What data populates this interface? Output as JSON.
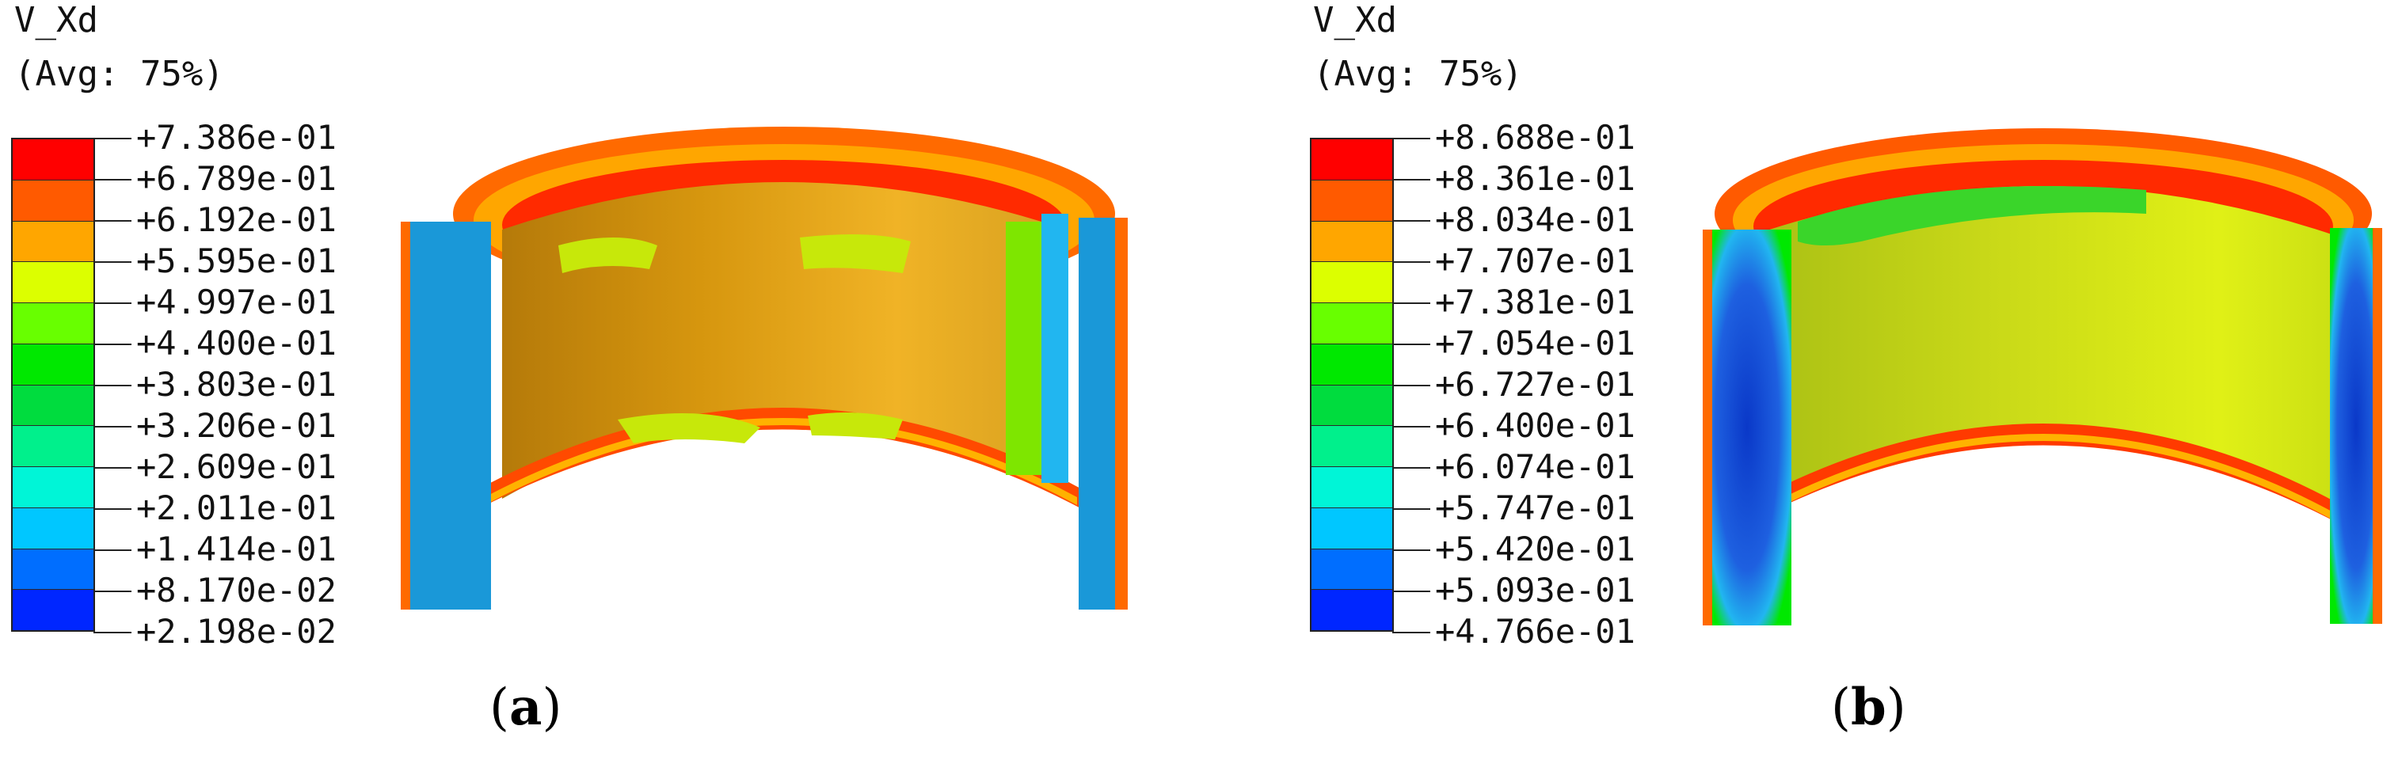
{
  "figures": [
    {
      "id": "a",
      "variable": "V_Xd",
      "averaging": "(Avg: 75%)",
      "caption_open": "(",
      "caption_letter": "a",
      "caption_close": ")",
      "legend": {
        "labels": [
          "+7.386e-01",
          "+6.789e-01",
          "+6.192e-01",
          "+5.595e-01",
          "+4.997e-01",
          "+4.400e-01",
          "+3.803e-01",
          "+3.206e-01",
          "+2.609e-01",
          "+2.011e-01",
          "+1.414e-01",
          "+8.170e-02",
          "+2.198e-02"
        ],
        "colors": [
          "#ff0000",
          "#ff5a00",
          "#ffa600",
          "#dcff00",
          "#68ff00",
          "#00e800",
          "#00dc3e",
          "#00f08c",
          "#00f5d7",
          "#00c7ff",
          "#006eff",
          "#0026ff"
        ]
      },
      "contour_colors": {
        "inner_wall": "#d6960e",
        "inner_wall_light": "#e8ad20",
        "rim": "#ff3c00",
        "rim_band": "#ffa600",
        "cut_face": "#1a98d8",
        "accent_green": "#7ee600",
        "accent_lime": "#c7e80a"
      }
    },
    {
      "id": "b",
      "variable": "V_Xd",
      "averaging": "(Avg: 75%)",
      "caption_open": "(",
      "caption_letter": "b",
      "caption_close": ")",
      "legend": {
        "labels": [
          "+8.688e-01",
          "+8.361e-01",
          "+8.034e-01",
          "+7.707e-01",
          "+7.381e-01",
          "+7.054e-01",
          "+6.727e-01",
          "+6.400e-01",
          "+6.074e-01",
          "+5.747e-01",
          "+5.420e-01",
          "+5.093e-01",
          "+4.766e-01"
        ],
        "colors": [
          "#ff0000",
          "#ff5a00",
          "#ffa600",
          "#dcff00",
          "#68ff00",
          "#00e800",
          "#00dc3e",
          "#00f08c",
          "#00f5d7",
          "#00c7ff",
          "#006eff",
          "#0026ff"
        ]
      },
      "contour_colors": {
        "inner_wall": "#bfd21a",
        "inner_wall_light": "#dff015",
        "rim": "#ff2a00",
        "rim_band": "#ffa600",
        "cut_face": "#1e60e0",
        "cut_face_core": "#0a38c8",
        "accent_green": "#3ad52a"
      }
    }
  ]
}
